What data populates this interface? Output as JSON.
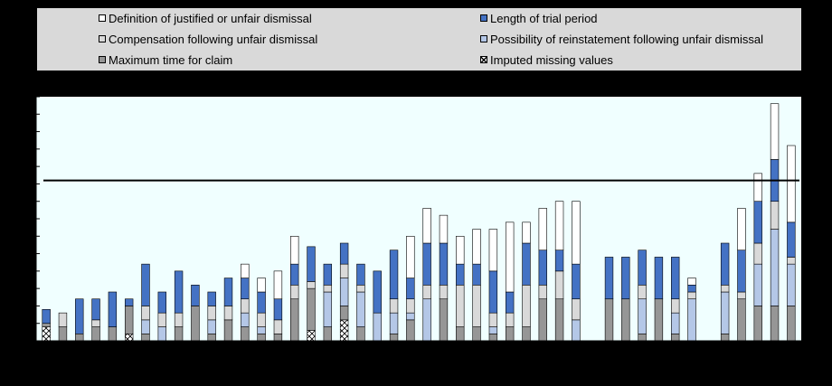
{
  "chart_data": {
    "type": "bar",
    "stacked": true,
    "title": "",
    "xlabel": "",
    "ylabel": "",
    "ylim": [
      0,
      3.5
    ],
    "ytick_step": 0.25,
    "reference_line": 2.3,
    "legend_position": "top",
    "grid": false,
    "categories": [
      "",
      "",
      "",
      "",
      "",
      "",
      "",
      "",
      "",
      "",
      "",
      "",
      "",
      "",
      "",
      "",
      "",
      "",
      "",
      "",
      "",
      "",
      "",
      "",
      "",
      "",
      "",
      "",
      "",
      "",
      "",
      "",
      "",
      "",
      "",
      "",
      "",
      "",
      "",
      "",
      "",
      "",
      "",
      ""
    ],
    "bar_gaps_after": [
      32,
      38
    ],
    "series": [
      {
        "name": "Imputed missing values",
        "color": "#ffffff",
        "pattern": "crosshatch",
        "values": [
          0.2,
          0,
          0,
          0,
          0,
          0.1,
          0,
          0,
          0,
          0,
          0,
          0,
          0,
          0,
          0,
          0,
          0.15,
          0,
          0.3,
          0,
          0,
          0,
          0,
          0,
          0,
          0,
          0,
          0,
          0,
          0,
          0,
          0,
          0,
          0,
          0,
          0,
          0,
          0,
          0,
          0,
          0,
          0,
          0,
          0
        ]
      },
      {
        "name": "Maximum time for claim",
        "color": "#969696",
        "values": [
          0.05,
          0.2,
          0.1,
          0.2,
          0.2,
          0.4,
          0.1,
          0,
          0.2,
          0.5,
          0.1,
          0.3,
          0.2,
          0.1,
          0.1,
          0.6,
          0.6,
          0.2,
          0.2,
          0.2,
          0,
          0.1,
          0.3,
          0,
          0.6,
          0.2,
          0.2,
          0.1,
          0.2,
          0.2,
          0.6,
          0.6,
          0,
          0.6,
          0.6,
          0.1,
          0.6,
          0.1,
          0,
          0.1,
          0.6,
          0.5,
          0.5,
          0.5
        ]
      },
      {
        "name": "Possibility of reinstatement following unfair dismissal",
        "color": "#b4c7e7",
        "values": [
          0,
          0,
          0,
          0,
          0,
          0,
          0.2,
          0.2,
          0,
          0,
          0.2,
          0,
          0.2,
          0.1,
          0,
          0,
          0,
          0.5,
          0.4,
          0.5,
          0.4,
          0.3,
          0.1,
          0.6,
          0,
          0,
          0,
          0.1,
          0,
          0,
          0,
          0,
          0.3,
          0,
          0,
          0.5,
          0,
          0.3,
          0.6,
          0.6,
          0,
          0.6,
          1.1,
          0.6
        ]
      },
      {
        "name": "Compensation following unfair dismissal",
        "color": "#d9d9d9",
        "values": [
          0,
          0.2,
          0,
          0.1,
          0,
          0,
          0.2,
          0.2,
          0.2,
          0,
          0.2,
          0.2,
          0.2,
          0.2,
          0.2,
          0.2,
          0.1,
          0.1,
          0.2,
          0.1,
          0,
          0.2,
          0.2,
          0.2,
          0.2,
          0.6,
          0.6,
          0.2,
          0.2,
          0.6,
          0.2,
          0.4,
          0.3,
          0,
          0,
          0.2,
          0,
          0.2,
          0.1,
          0.1,
          0.1,
          0.3,
          0.4,
          0.1
        ]
      },
      {
        "name": "Length of trial period",
        "color": "#4472c4",
        "values": [
          0.2,
          0,
          0.5,
          0.3,
          0.5,
          0.1,
          0.6,
          0.3,
          0.6,
          0.3,
          0.2,
          0.4,
          0.3,
          0.3,
          0.3,
          0.3,
          0.5,
          0.3,
          0.3,
          0.3,
          0.6,
          0.7,
          0.3,
          0.6,
          0.6,
          0.3,
          0.3,
          0.6,
          0.3,
          0.6,
          0.5,
          0.3,
          0.5,
          0.6,
          0.6,
          0.5,
          0.6,
          0.6,
          0.1,
          0.6,
          0.6,
          0.6,
          0.6,
          0.5
        ]
      },
      {
        "name": "Definition of justified or unfair dismissal",
        "color": "#ffffff",
        "values": [
          0,
          0,
          0,
          0,
          0,
          0,
          0,
          0,
          0,
          0,
          0,
          0,
          0.2,
          0.2,
          0.4,
          0.4,
          0,
          0,
          0,
          0,
          0,
          0,
          0.6,
          0.5,
          0.4,
          0.4,
          0.5,
          0.6,
          1.0,
          0.3,
          0.6,
          0.7,
          0.9,
          0,
          0,
          0,
          0,
          0,
          0.1,
          0,
          0.6,
          0.4,
          0.8,
          1.1
        ]
      }
    ]
  },
  "legend": {
    "items": [
      {
        "label": "Definition of justified or unfair dismissal",
        "color": "#ffffff"
      },
      {
        "label": "Length of trial period",
        "color": "#4472c4"
      },
      {
        "label": "Compensation following unfair dismissal",
        "color": "#d9d9d9"
      },
      {
        "label": "Possibility of reinstatement following unfair dismissal",
        "color": "#b4c7e7"
      },
      {
        "label": "Maximum time for claim",
        "color": "#969696"
      },
      {
        "label": "Imputed missing values",
        "color": "#ffffff"
      }
    ]
  },
  "colors": {
    "page_background": "#000000",
    "plot_background": "#f0ffff",
    "legend_background": "#d9d9d9",
    "reference_line": "#000000",
    "bar_edge": "#000000"
  }
}
